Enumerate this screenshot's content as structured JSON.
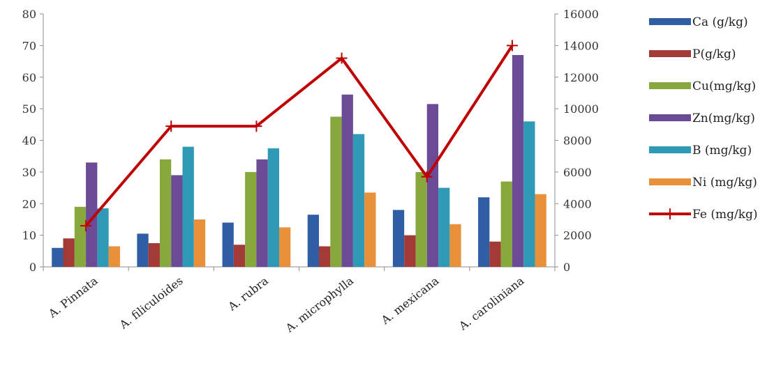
{
  "chart_data": {
    "type": "bar",
    "categories": [
      "A. Pinnata",
      "A. filiculoides",
      "A. rubra",
      "A. microphylla",
      "A. mexicana",
      "A. caroliniana"
    ],
    "ylim_left": [
      0,
      80
    ],
    "yticks_left": [
      0,
      10,
      20,
      30,
      40,
      50,
      60,
      70,
      80
    ],
    "ylim_right": [
      0,
      16000
    ],
    "yticks_right": [
      0,
      2000,
      4000,
      6000,
      8000,
      10000,
      12000,
      14000,
      16000
    ],
    "grid": false,
    "legend_position": "right",
    "series": [
      {
        "name": "Ca (g/kg)",
        "axis": "left",
        "type": "bar",
        "color": "#2f5ea4",
        "values": [
          6,
          10.5,
          14,
          16.5,
          18,
          22
        ]
      },
      {
        "name": "P(g/kg)",
        "axis": "left",
        "type": "bar",
        "color": "#a33a36",
        "values": [
          9,
          7.5,
          7,
          6.5,
          10,
          8
        ]
      },
      {
        "name": "Cu(mg/kg)",
        "axis": "left",
        "type": "bar",
        "color": "#86a83c",
        "values": [
          19,
          34,
          30,
          47.5,
          30,
          27
        ]
      },
      {
        "name": "Zn(mg/kg)",
        "axis": "left",
        "type": "bar",
        "color": "#6b4a96",
        "values": [
          33,
          29,
          34,
          54.5,
          51.5,
          67
        ]
      },
      {
        "name": "B (mg/kg)",
        "axis": "left",
        "type": "bar",
        "color": "#2e9ab5",
        "values": [
          18.5,
          38,
          37.5,
          42,
          25,
          46
        ]
      },
      {
        "name": "Ni (mg/kg)",
        "axis": "left",
        "type": "bar",
        "color": "#e8913a",
        "values": [
          6.5,
          15,
          12.5,
          23.5,
          13.5,
          23
        ]
      },
      {
        "name": "Fe (mg/kg)",
        "axis": "right",
        "type": "line",
        "color": "#c00000",
        "values": [
          2600,
          8900,
          8900,
          13200,
          5700,
          14000
        ]
      }
    ]
  }
}
